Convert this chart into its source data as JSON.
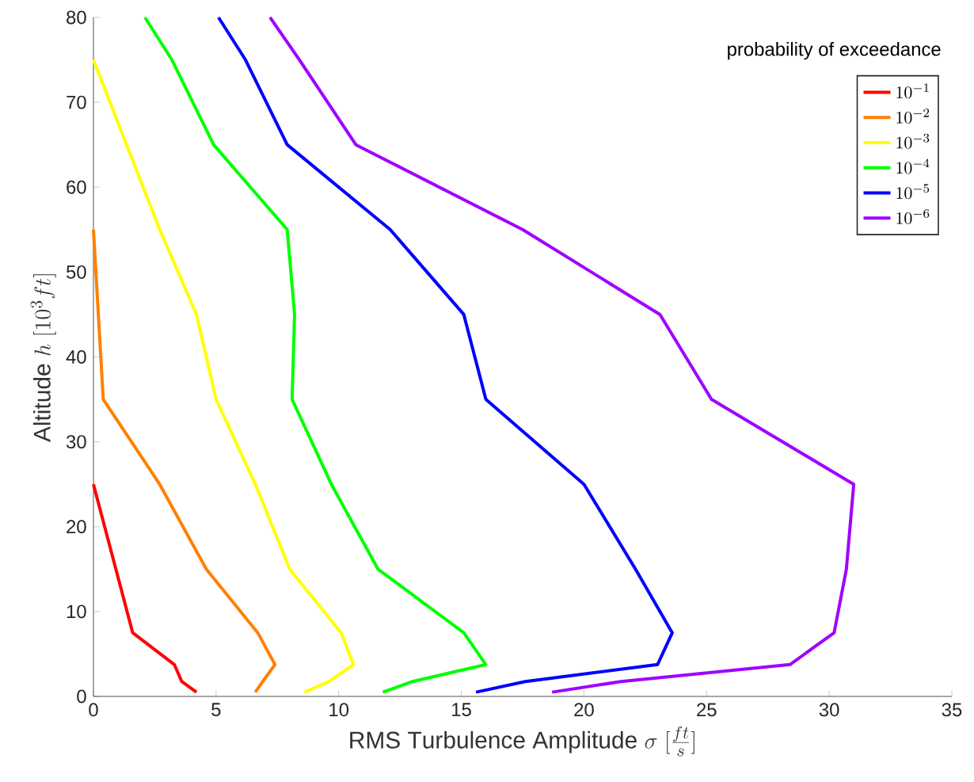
{
  "chart_data": {
    "type": "line",
    "xlabel": "\\mathrm{RMS\\ Turbulence\\ Amplitude}\\ \\sigma\\ [\\frac{ft}{s}]",
    "ylabel": "\\mathrm{Altitude}\\ h\\ [10^3 ft]",
    "legend_title": "probability of exceedance",
    "xlim": [
      0,
      35
    ],
    "ylim": [
      0,
      80
    ],
    "xticks": [
      0,
      5,
      10,
      15,
      20,
      25,
      30,
      35
    ],
    "yticks": [
      0,
      10,
      20,
      30,
      40,
      50,
      60,
      70,
      80
    ],
    "grid": false,
    "legend": "top right",
    "marker": "none",
    "line_style": "solid",
    "series": [
      {
        "name": "10^{-1}",
        "color": "#ff0000",
        "x": [
          4.2,
          3.6,
          3.3,
          1.6,
          0
        ],
        "values": [
          0.5,
          1.75,
          3.75,
          7.5,
          25
        ]
      },
      {
        "name": "10^{-2}",
        "color": "#ff8000",
        "x": [
          6.6,
          6.9,
          7.4,
          6.7,
          4.6,
          2.7,
          0.4,
          0
        ],
        "values": [
          0.5,
          1.75,
          3.75,
          7.5,
          15,
          25,
          35,
          55
        ]
      },
      {
        "name": "10^{-3}",
        "color": "#ffff00",
        "x": [
          8.6,
          9.6,
          10.6,
          10.1,
          8.0,
          6.6,
          5.0,
          4.2,
          2.7,
          0
        ],
        "values": [
          0.5,
          1.75,
          3.75,
          7.5,
          15,
          25,
          35,
          45,
          55,
          75
        ]
      },
      {
        "name": "10^{-4}",
        "color": "#00ff00",
        "x": [
          11.8,
          13.0,
          16.0,
          15.1,
          11.6,
          9.7,
          8.1,
          8.2,
          7.9,
          4.9,
          3.2,
          2.1
        ],
        "values": [
          0.5,
          1.75,
          3.75,
          7.5,
          15,
          25,
          35,
          45,
          55,
          65,
          75,
          80
        ]
      },
      {
        "name": "10^{-5}",
        "color": "#0000ff",
        "x": [
          15.6,
          17.6,
          23.0,
          23.6,
          22.1,
          20.0,
          16.0,
          15.1,
          12.1,
          7.9,
          6.2,
          5.1
        ],
        "values": [
          0.5,
          1.75,
          3.75,
          7.5,
          15,
          25,
          35,
          45,
          55,
          65,
          75,
          80
        ]
      },
      {
        "name": "10^{-6}",
        "color": "#a000ff",
        "x": [
          18.7,
          21.5,
          28.4,
          30.2,
          30.7,
          31.0,
          25.2,
          23.1,
          17.5,
          10.7,
          8.4,
          7.2
        ],
        "values": [
          0.5,
          1.75,
          3.75,
          7.5,
          15,
          25,
          35,
          45,
          55,
          65,
          75,
          80
        ]
      }
    ]
  }
}
